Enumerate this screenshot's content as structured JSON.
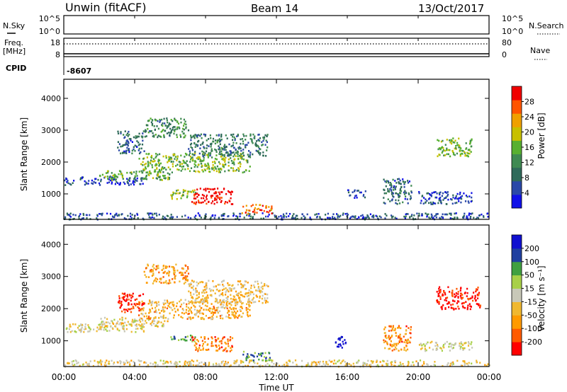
{
  "header": {
    "station": "Unwin (fitACF)",
    "beam": "Beam 14",
    "date": "13/Oct/2017"
  },
  "labels": {
    "nsky": "N.Sky",
    "nsearch": "N.Search",
    "freq": "Freq.",
    "freq_unit": "[MHz]",
    "nave": "Nave",
    "cpid": "CPID",
    "cpid_value": "-8607"
  },
  "noise_ticks": {
    "left": [
      "10^5",
      "10^0"
    ],
    "right": [
      "10^5",
      "10^0"
    ]
  },
  "freq_ticks": {
    "left": [
      "18",
      "8"
    ],
    "right": [
      "80",
      "0"
    ]
  },
  "colors": {
    "power_scale": [
      "#1010e8",
      "#2a48a8",
      "#2f6a5a",
      "#3f8a52",
      "#58b030",
      "#c8c000",
      "#f0a000",
      "#ff5500",
      "#f00000"
    ],
    "velocity_scale": [
      "#ff0000",
      "#ff5a00",
      "#ff9a00",
      "#f0b830",
      "#c8c8b8",
      "#a8d048",
      "#40a040",
      "#2040a0",
      "#1010d0"
    ]
  },
  "chart_data": [
    {
      "type": "heatmap",
      "name": "power",
      "xlabel": "Time UT",
      "ylabel": "Slant Range [km]",
      "ylim": [
        200,
        4600
      ],
      "xlim": [
        0,
        24
      ],
      "y_ticks": [
        "1000",
        "2000",
        "3000",
        "4000"
      ],
      "x_ticks": [
        "00:00",
        "04:00",
        "08:00",
        "12:00",
        "16:00",
        "20:00",
        "00:00"
      ],
      "colorbar_label": "Power [dB]",
      "colorbar_ticks": [
        "4",
        "8",
        "12",
        "16",
        "20",
        "24",
        "28"
      ],
      "regions": [
        {
          "t0": 0.0,
          "t1": 24.0,
          "r0": 220,
          "r1": 420,
          "level": 0.2
        },
        {
          "t0": 0.0,
          "t1": 4.5,
          "r0": 1300,
          "r1": 1550,
          "level": 0.15
        },
        {
          "t0": 2.0,
          "t1": 6.0,
          "r0": 1450,
          "r1": 1750,
          "level": 0.45
        },
        {
          "t0": 4.2,
          "t1": 10.5,
          "r0": 1700,
          "r1": 2300,
          "level": 0.5
        },
        {
          "t0": 7.0,
          "t1": 11.5,
          "r0": 2200,
          "r1": 2900,
          "level": 0.3
        },
        {
          "t0": 4.5,
          "t1": 7.0,
          "r0": 2800,
          "r1": 3400,
          "level": 0.35
        },
        {
          "t0": 3.0,
          "t1": 4.5,
          "r0": 2300,
          "r1": 3000,
          "level": 0.25
        },
        {
          "t0": 6.0,
          "t1": 7.4,
          "r0": 850,
          "r1": 1150,
          "level": 0.55
        },
        {
          "t0": 7.2,
          "t1": 9.5,
          "r0": 700,
          "r1": 1200,
          "level": 0.95
        },
        {
          "t0": 10.0,
          "t1": 11.7,
          "r0": 400,
          "r1": 700,
          "level": 0.8
        },
        {
          "t0": 16.0,
          "t1": 17.0,
          "r0": 900,
          "r1": 1150,
          "level": 0.1
        },
        {
          "t0": 18.0,
          "t1": 19.6,
          "r0": 700,
          "r1": 1500,
          "level": 0.25
        },
        {
          "t0": 20.0,
          "t1": 23.0,
          "r0": 700,
          "r1": 1100,
          "level": 0.15
        },
        {
          "t0": 21.0,
          "t1": 23.0,
          "r0": 2200,
          "r1": 2800,
          "level": 0.5
        }
      ]
    },
    {
      "type": "heatmap",
      "name": "velocity",
      "xlabel": "Time UT",
      "ylabel": "Slant Range [km]",
      "ylim": [
        200,
        4600
      ],
      "xlim": [
        0,
        24
      ],
      "y_ticks": [
        "1000",
        "2000",
        "3000",
        "4000"
      ],
      "x_ticks": [
        "00:00",
        "04:00",
        "08:00",
        "12:00",
        "16:00",
        "20:00",
        "00:00"
      ],
      "colorbar_label": "Velocity [m s⁻¹]",
      "colorbar_ticks": [
        "-200",
        "-100",
        "-50",
        "-15",
        "15",
        "50",
        "100",
        "200"
      ],
      "regions": [
        {
          "t0": 0.0,
          "t1": 24.0,
          "r0": 220,
          "r1": 420,
          "level": 0.45
        },
        {
          "t0": 0.0,
          "t1": 4.5,
          "r0": 1300,
          "r1": 1550,
          "level": 0.5
        },
        {
          "t0": 2.0,
          "t1": 6.0,
          "r0": 1450,
          "r1": 1750,
          "level": 0.45
        },
        {
          "t0": 4.2,
          "t1": 10.5,
          "r0": 1700,
          "r1": 2300,
          "level": 0.35
        },
        {
          "t0": 7.0,
          "t1": 11.5,
          "r0": 2200,
          "r1": 2900,
          "level": 0.4
        },
        {
          "t0": 4.5,
          "t1": 7.0,
          "r0": 2800,
          "r1": 3400,
          "level": 0.3
        },
        {
          "t0": 3.0,
          "t1": 4.5,
          "r0": 1900,
          "r1": 2500,
          "level": 0.05
        },
        {
          "t0": 6.0,
          "t1": 7.4,
          "r0": 1000,
          "r1": 1200,
          "level": 0.7
        },
        {
          "t0": 7.2,
          "t1": 9.5,
          "r0": 700,
          "r1": 1150,
          "level": 0.2
        },
        {
          "t0": 10.0,
          "t1": 11.7,
          "r0": 400,
          "r1": 700,
          "level": 0.75
        },
        {
          "t0": 15.3,
          "t1": 16.0,
          "r0": 800,
          "r1": 1150,
          "level": 0.95
        },
        {
          "t0": 18.0,
          "t1": 19.6,
          "r0": 700,
          "r1": 1500,
          "level": 0.25
        },
        {
          "t0": 20.0,
          "t1": 23.0,
          "r0": 700,
          "r1": 1000,
          "level": 0.5
        },
        {
          "t0": 21.0,
          "t1": 23.5,
          "r0": 2000,
          "r1": 2700,
          "level": 0.05
        }
      ]
    }
  ]
}
